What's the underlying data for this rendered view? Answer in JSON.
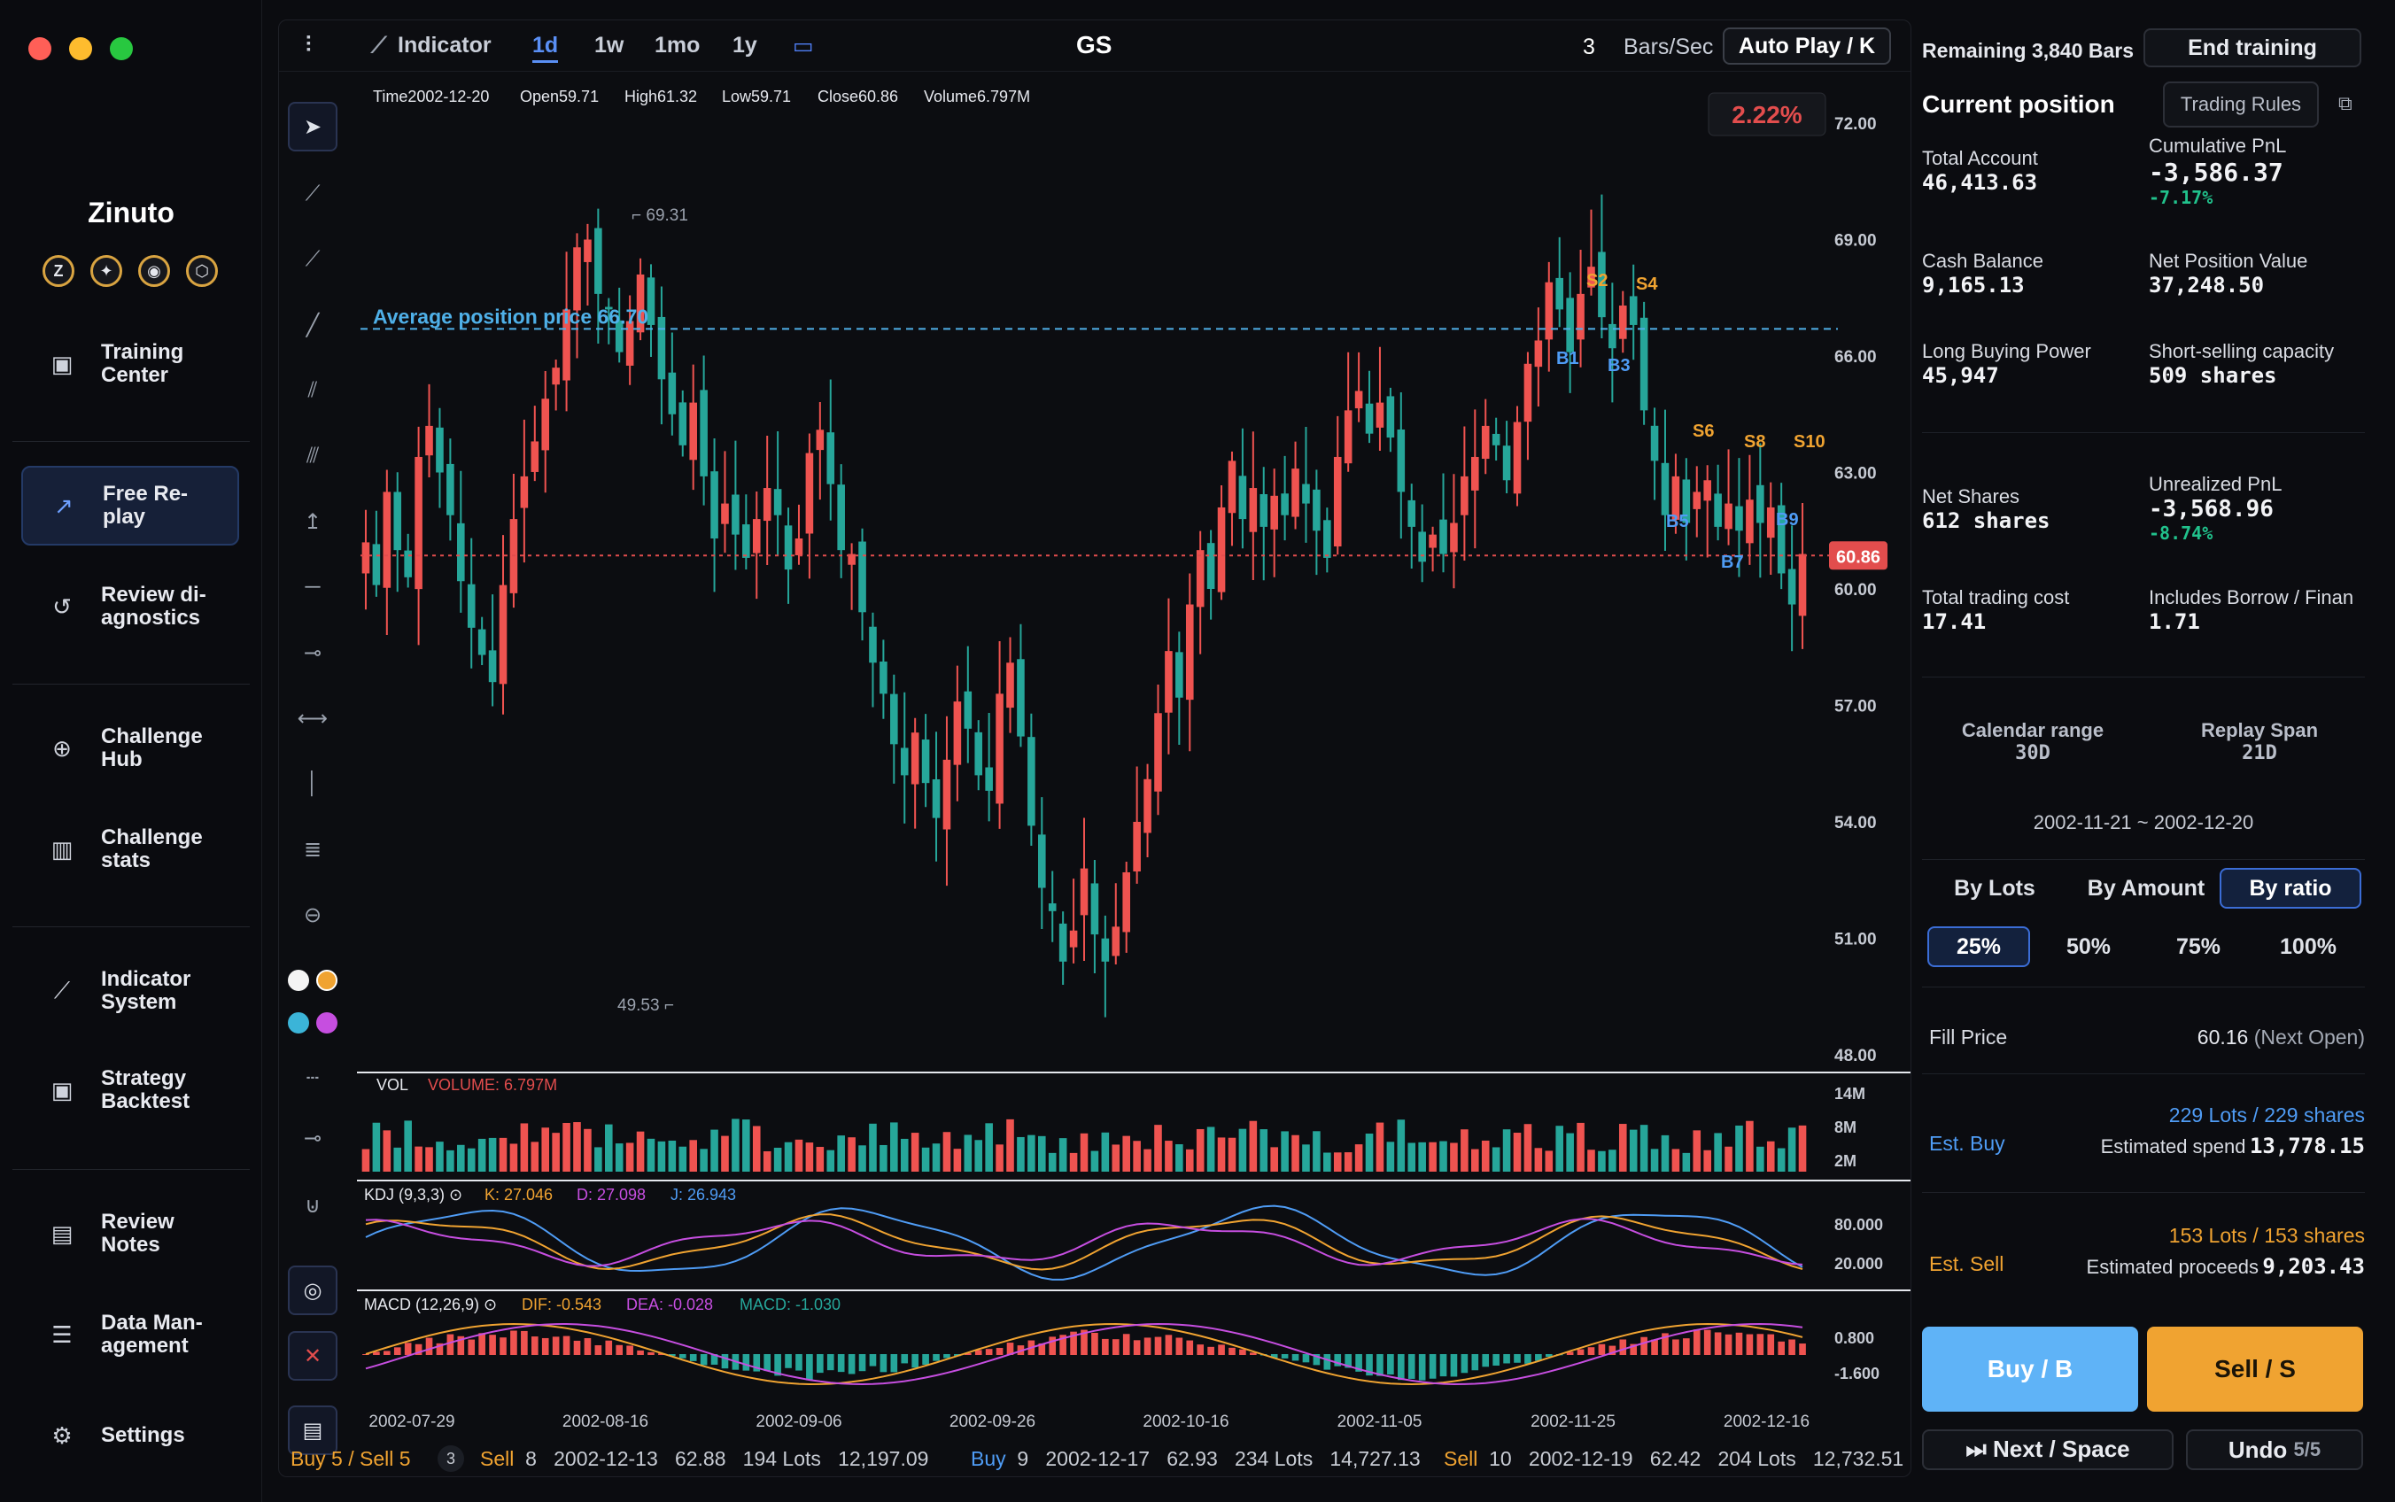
{
  "sidebar": {
    "brand": "Zinuto",
    "coins": [
      "Z",
      "✦",
      "◉",
      "⬡"
    ],
    "items": [
      {
        "label": "Training\nCenter",
        "icon": "certificate-icon",
        "glyph": "▣"
      },
      {
        "label": "Free Re-\nplay",
        "icon": "chart-line-icon",
        "glyph": "↗",
        "active": true
      },
      {
        "label": "Review di-\nagnostics",
        "icon": "history-icon",
        "glyph": "↺"
      },
      {
        "label": "Challenge\nHub",
        "icon": "target-icon",
        "glyph": "⊕"
      },
      {
        "label": "Challenge\nstats",
        "icon": "bar-chart-icon",
        "glyph": "▥"
      },
      {
        "label": "Indicator\nSystem",
        "icon": "indicator-icon",
        "glyph": "⟋"
      },
      {
        "label": "Strategy\nBacktest",
        "icon": "backtest-icon",
        "glyph": "▣"
      },
      {
        "label": "Review\nNotes",
        "icon": "notes-icon",
        "glyph": "▤"
      },
      {
        "label": "Data Man-\nagement",
        "icon": "database-icon",
        "glyph": "☰"
      },
      {
        "label": "Settings",
        "icon": "gear-icon",
        "glyph": "⚙"
      }
    ]
  },
  "toolbar": {
    "indicator_label": "Indicator",
    "intervals": [
      "1d",
      "1w",
      "1mo",
      "1y"
    ],
    "active_interval": "1d",
    "ticker": "GS",
    "speed": "3",
    "speed_unit": "Bars/Sec",
    "autoplay": "Auto Play / K"
  },
  "ohlc": {
    "time_label": "Time",
    "time": "2002-12-20",
    "open_label": "Open",
    "open": "59.71",
    "high_label": "High",
    "high": "61.32",
    "low_label": "Low",
    "low": "59.71",
    "close_label": "Close",
    "close": "60.86",
    "volume_label": "Volume",
    "volume": "6.797M"
  },
  "chart": {
    "change_badge": "2.22%",
    "avg_line_label": "Average position price 66.70",
    "avg_price": 66.7,
    "last_price_tag": "60.86",
    "last_price": 60.86,
    "high_marker": "69.31",
    "low_marker": "49.53",
    "price_ticks": [
      "72.00",
      "69.00",
      "66.00",
      "63.00",
      "60.00",
      "57.00",
      "54.00",
      "51.00",
      "48.00"
    ],
    "vol_label": "VOL",
    "vol_value": "VOLUME: 6.797M",
    "vol_ticks": [
      "14M",
      "8M",
      "2M"
    ],
    "kdj_label": "KDJ (9,3,3)",
    "kdj_k": "K: 27.046",
    "kdj_d": "D: 27.098",
    "kdj_j": "J: 26.943",
    "kdj_ticks": [
      "80.000",
      "20.000"
    ],
    "macd_label": "MACD (12,26,9)",
    "macd_dif": "DIF: -0.543",
    "macd_dea": "DEA: -0.028",
    "macd_macd": "MACD: -1.030",
    "macd_ticks": [
      "0.800",
      "-1.600"
    ],
    "dates": [
      "2002-07-29",
      "2002-08-16",
      "2002-09-06",
      "2002-09-26",
      "2002-10-16",
      "2002-11-05",
      "2002-11-25",
      "2002-12-16"
    ],
    "trade_markers": [
      "S2",
      "S4",
      "B1",
      "B3",
      "S6",
      "S8",
      "S10",
      "B5",
      "B7",
      "B9"
    ],
    "colors": {
      "up": "#ef5350",
      "down": "#26a69a",
      "avg": "#4fb0e8",
      "last": "#e24d4d"
    }
  },
  "chart_data": {
    "type": "candlestick",
    "title": "GS",
    "close_series": [
      61.2,
      60.1,
      62.5,
      61.0,
      60.3,
      63.4,
      64.2,
      63.0,
      61.9,
      60.2,
      59.0,
      58.3,
      57.6,
      60.1,
      61.8,
      62.9,
      63.8,
      64.9,
      65.7,
      67.2,
      68.8,
      69.0,
      67.6,
      67.2,
      66.1,
      66.9,
      68.1,
      66.8,
      65.4,
      64.5,
      63.7,
      64.8,
      62.9,
      61.3,
      62.2,
      61.4,
      60.8,
      61.8,
      62.6,
      61.9,
      60.5,
      61.3,
      63.5,
      64.1,
      62.7,
      61.0,
      60.9,
      59.4,
      58.1,
      57.3,
      56.0,
      55.2,
      56.3,
      55.0,
      54.1,
      55.6,
      57.1,
      56.4,
      55.2,
      54.8,
      57.3,
      58.1,
      56.2,
      53.9,
      52.3,
      51.7,
      50.4,
      51.2,
      52.8,
      51.1,
      50.4,
      51.3,
      52.7,
      54.0,
      55.1,
      56.8,
      58.4,
      57.2,
      59.6,
      61.0,
      60.0,
      62.1,
      63.3,
      61.8,
      62.6,
      61.6,
      62.4,
      61.9,
      63.1,
      62.2,
      61.5,
      60.8,
      63.4,
      64.6,
      65.1,
      64.0,
      64.8,
      63.9,
      62.5,
      61.6,
      60.7,
      61.4,
      60.9,
      61.7,
      62.9,
      63.4,
      64.2,
      63.7,
      62.8,
      64.3,
      65.8,
      66.4,
      67.9,
      67.2,
      66.1,
      67.6,
      68.3,
      67.0,
      66.2,
      67.3,
      66.8,
      64.6,
      63.3,
      61.9,
      62.9,
      61.7,
      62.5,
      62.8,
      61.6,
      62.2,
      61.5,
      62.3,
      61.7,
      62.1,
      60.4,
      59.6,
      60.9
    ],
    "ylim": [
      48,
      72
    ],
    "x_range": [
      "2002-07-29",
      "2002-12-20"
    ]
  },
  "right": {
    "remaining": "Remaining 3,840 Bars",
    "end_training": "End training",
    "current_position": "Current position",
    "trading_rules": "Trading Rules",
    "stats": [
      {
        "label": "Total Account",
        "value": "46,413.63"
      },
      {
        "label": "Cumulative PnL",
        "value": "-3,586.37",
        "sub": "-7.17%"
      },
      {
        "label": "Cash Balance",
        "value": "9,165.13"
      },
      {
        "label": "Net Position Value",
        "value": "37,248.50"
      },
      {
        "label": "Long Buying Power",
        "value": "45,947"
      },
      {
        "label": "Short-selling capacity",
        "value": "509 shares"
      },
      {
        "label": "Net Shares",
        "value": "612 shares"
      },
      {
        "label": "Unrealized PnL",
        "value": "-3,568.96",
        "sub": "-8.74%"
      },
      {
        "label": "Total trading cost",
        "value": "17.41"
      },
      {
        "label": "Includes Borrow / Finan",
        "value": "1.71"
      }
    ],
    "calendar_label": "Calendar range",
    "calendar_value": "30D",
    "span_label": "Replay Span",
    "span_value": "21D",
    "date_range": "2002-11-21 ~ 2002-12-20",
    "modes": [
      "By Lots",
      "By Amount",
      "By ratio"
    ],
    "ratios": [
      "25%",
      "50%",
      "75%",
      "100%"
    ],
    "fill_label": "Fill Price",
    "fill_price": "60.16",
    "fill_note": "(Next Open)",
    "est_buy_label": "Est. Buy",
    "est_buy_lots": "229 Lots / 229 shares",
    "est_buy_spend_label": "Estimated spend",
    "est_buy_spend": "13,778.15",
    "est_sell_label": "Est. Sell",
    "est_sell_lots": "153 Lots / 153 shares",
    "est_sell_proceeds_label": "Estimated proceeds",
    "est_sell_proceeds": "9,203.43",
    "buy_button": "Buy / B",
    "sell_button": "Sell / S",
    "next_button": "⏭ Next / Space",
    "undo_button": "Undo",
    "undo_count": "5/5"
  },
  "strip": {
    "summary": "Buy 5 / Sell 5",
    "count": "3",
    "trades": [
      {
        "side": "Sell",
        "n": "8",
        "date": "2002-12-13",
        "price": "62.88",
        "lots": "194 Lots",
        "amount": "12,197.09"
      },
      {
        "side": "Buy",
        "n": "9",
        "date": "2002-12-17",
        "price": "62.93",
        "lots": "234 Lots",
        "amount": "14,727.13"
      },
      {
        "side": "Sell",
        "n": "10",
        "date": "2002-12-19",
        "price": "62.42",
        "lots": "204 Lots",
        "amount": "12,732.51"
      }
    ]
  }
}
